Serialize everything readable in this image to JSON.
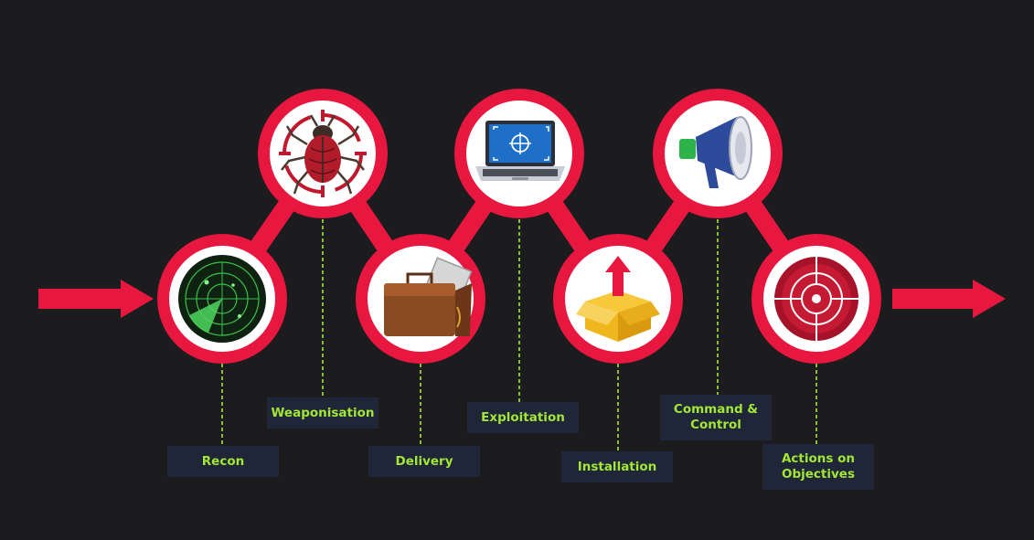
{
  "colors": {
    "background": "#1c1c1e",
    "ring": "#e8173f",
    "inner": "#ffffff",
    "connector": "#e8173f",
    "leader": "#a3e635",
    "label_bg": "#1e2638",
    "label_text": "#a3e635"
  },
  "stages": [
    {
      "id": "recon",
      "label": "Recon",
      "icon": "radar-icon"
    },
    {
      "id": "weaponisation",
      "label": "Weaponisation",
      "icon": "bug-target-icon"
    },
    {
      "id": "delivery",
      "label": "Delivery",
      "icon": "briefcase-icon"
    },
    {
      "id": "exploitation",
      "label": "Exploitation",
      "icon": "laptop-target-icon"
    },
    {
      "id": "installation",
      "label": "Installation",
      "icon": "box-upload-icon"
    },
    {
      "id": "command-control",
      "label": "Command &\nControl",
      "icon": "megaphone-icon"
    },
    {
      "id": "actions-objectives",
      "label": "Actions on\nObjectives",
      "icon": "target-icon"
    }
  ]
}
